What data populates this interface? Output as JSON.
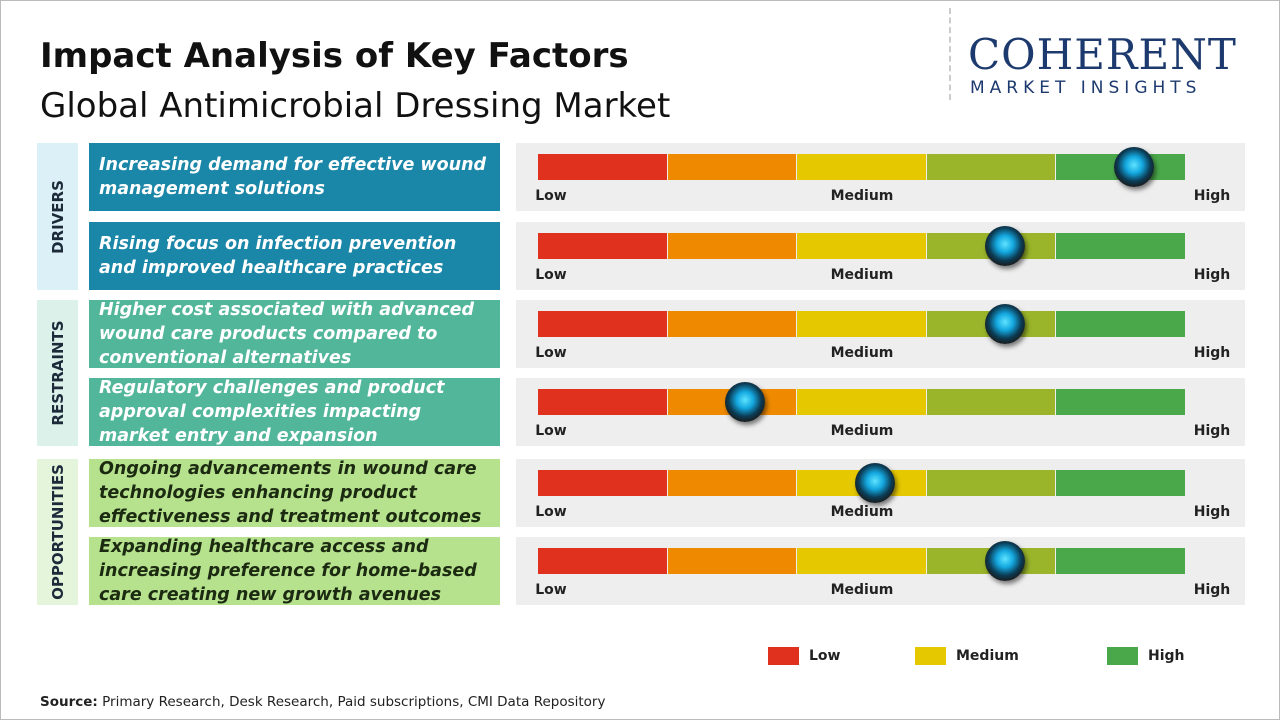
{
  "chart_data": {
    "type": "gauge",
    "title": "Impact Analysis of Key Factors",
    "subtitle": "Global Antimicrobial Dressing Market",
    "logo_name": "COHERENT",
    "logo_tagline": "MARKET INSIGHTS",
    "xlim": [
      0,
      5
    ],
    "scale_labels": [
      "Low",
      "Medium",
      "High"
    ],
    "segment_colors": [
      "#e0301e",
      "#ef8a00",
      "#e6c800",
      "#9ab52a",
      "#4aa84a"
    ],
    "groups": [
      {
        "name": "DRIVERS",
        "color": "#1a86a8",
        "text_color": "#ffffff",
        "band_color": "#dcf0f7",
        "factors": [
          {
            "label": "Increasing demand for effective wound management solutions",
            "value": 4.6
          },
          {
            "label": "Rising focus on infection prevention and improved healthcare practices",
            "value": 3.6
          }
        ]
      },
      {
        "name": "RESTRAINTS",
        "color": "#52b69a",
        "text_color": "#ffffff",
        "band_color": "#dcf1ea",
        "factors": [
          {
            "label": "Higher cost associated with advanced wound care products compared to conventional alternatives",
            "value": 3.6
          },
          {
            "label": "Regulatory challenges and product approval complexities impacting market entry and expansion",
            "value": 1.6
          }
        ]
      },
      {
        "name": "OPPORTUNITIES",
        "color": "#b6e28e",
        "text_color": "#1b2a10",
        "band_color": "#e5f5dc",
        "factors": [
          {
            "label": "Ongoing advancements in wound care technologies enhancing product effectiveness and treatment outcomes",
            "value": 2.6
          },
          {
            "label": "Expanding healthcare access and increasing preference for home-based care creating new growth avenues",
            "value": 3.6
          }
        ]
      }
    ],
    "legend": [
      {
        "name": "Low",
        "color": "#e0301e"
      },
      {
        "name": "Medium",
        "color": "#e6c800"
      },
      {
        "name": "High",
        "color": "#4aa84a"
      }
    ],
    "source_label": "Source:",
    "source": "Primary Research, Desk Research, Paid subscriptions, CMI Data Repository"
  }
}
